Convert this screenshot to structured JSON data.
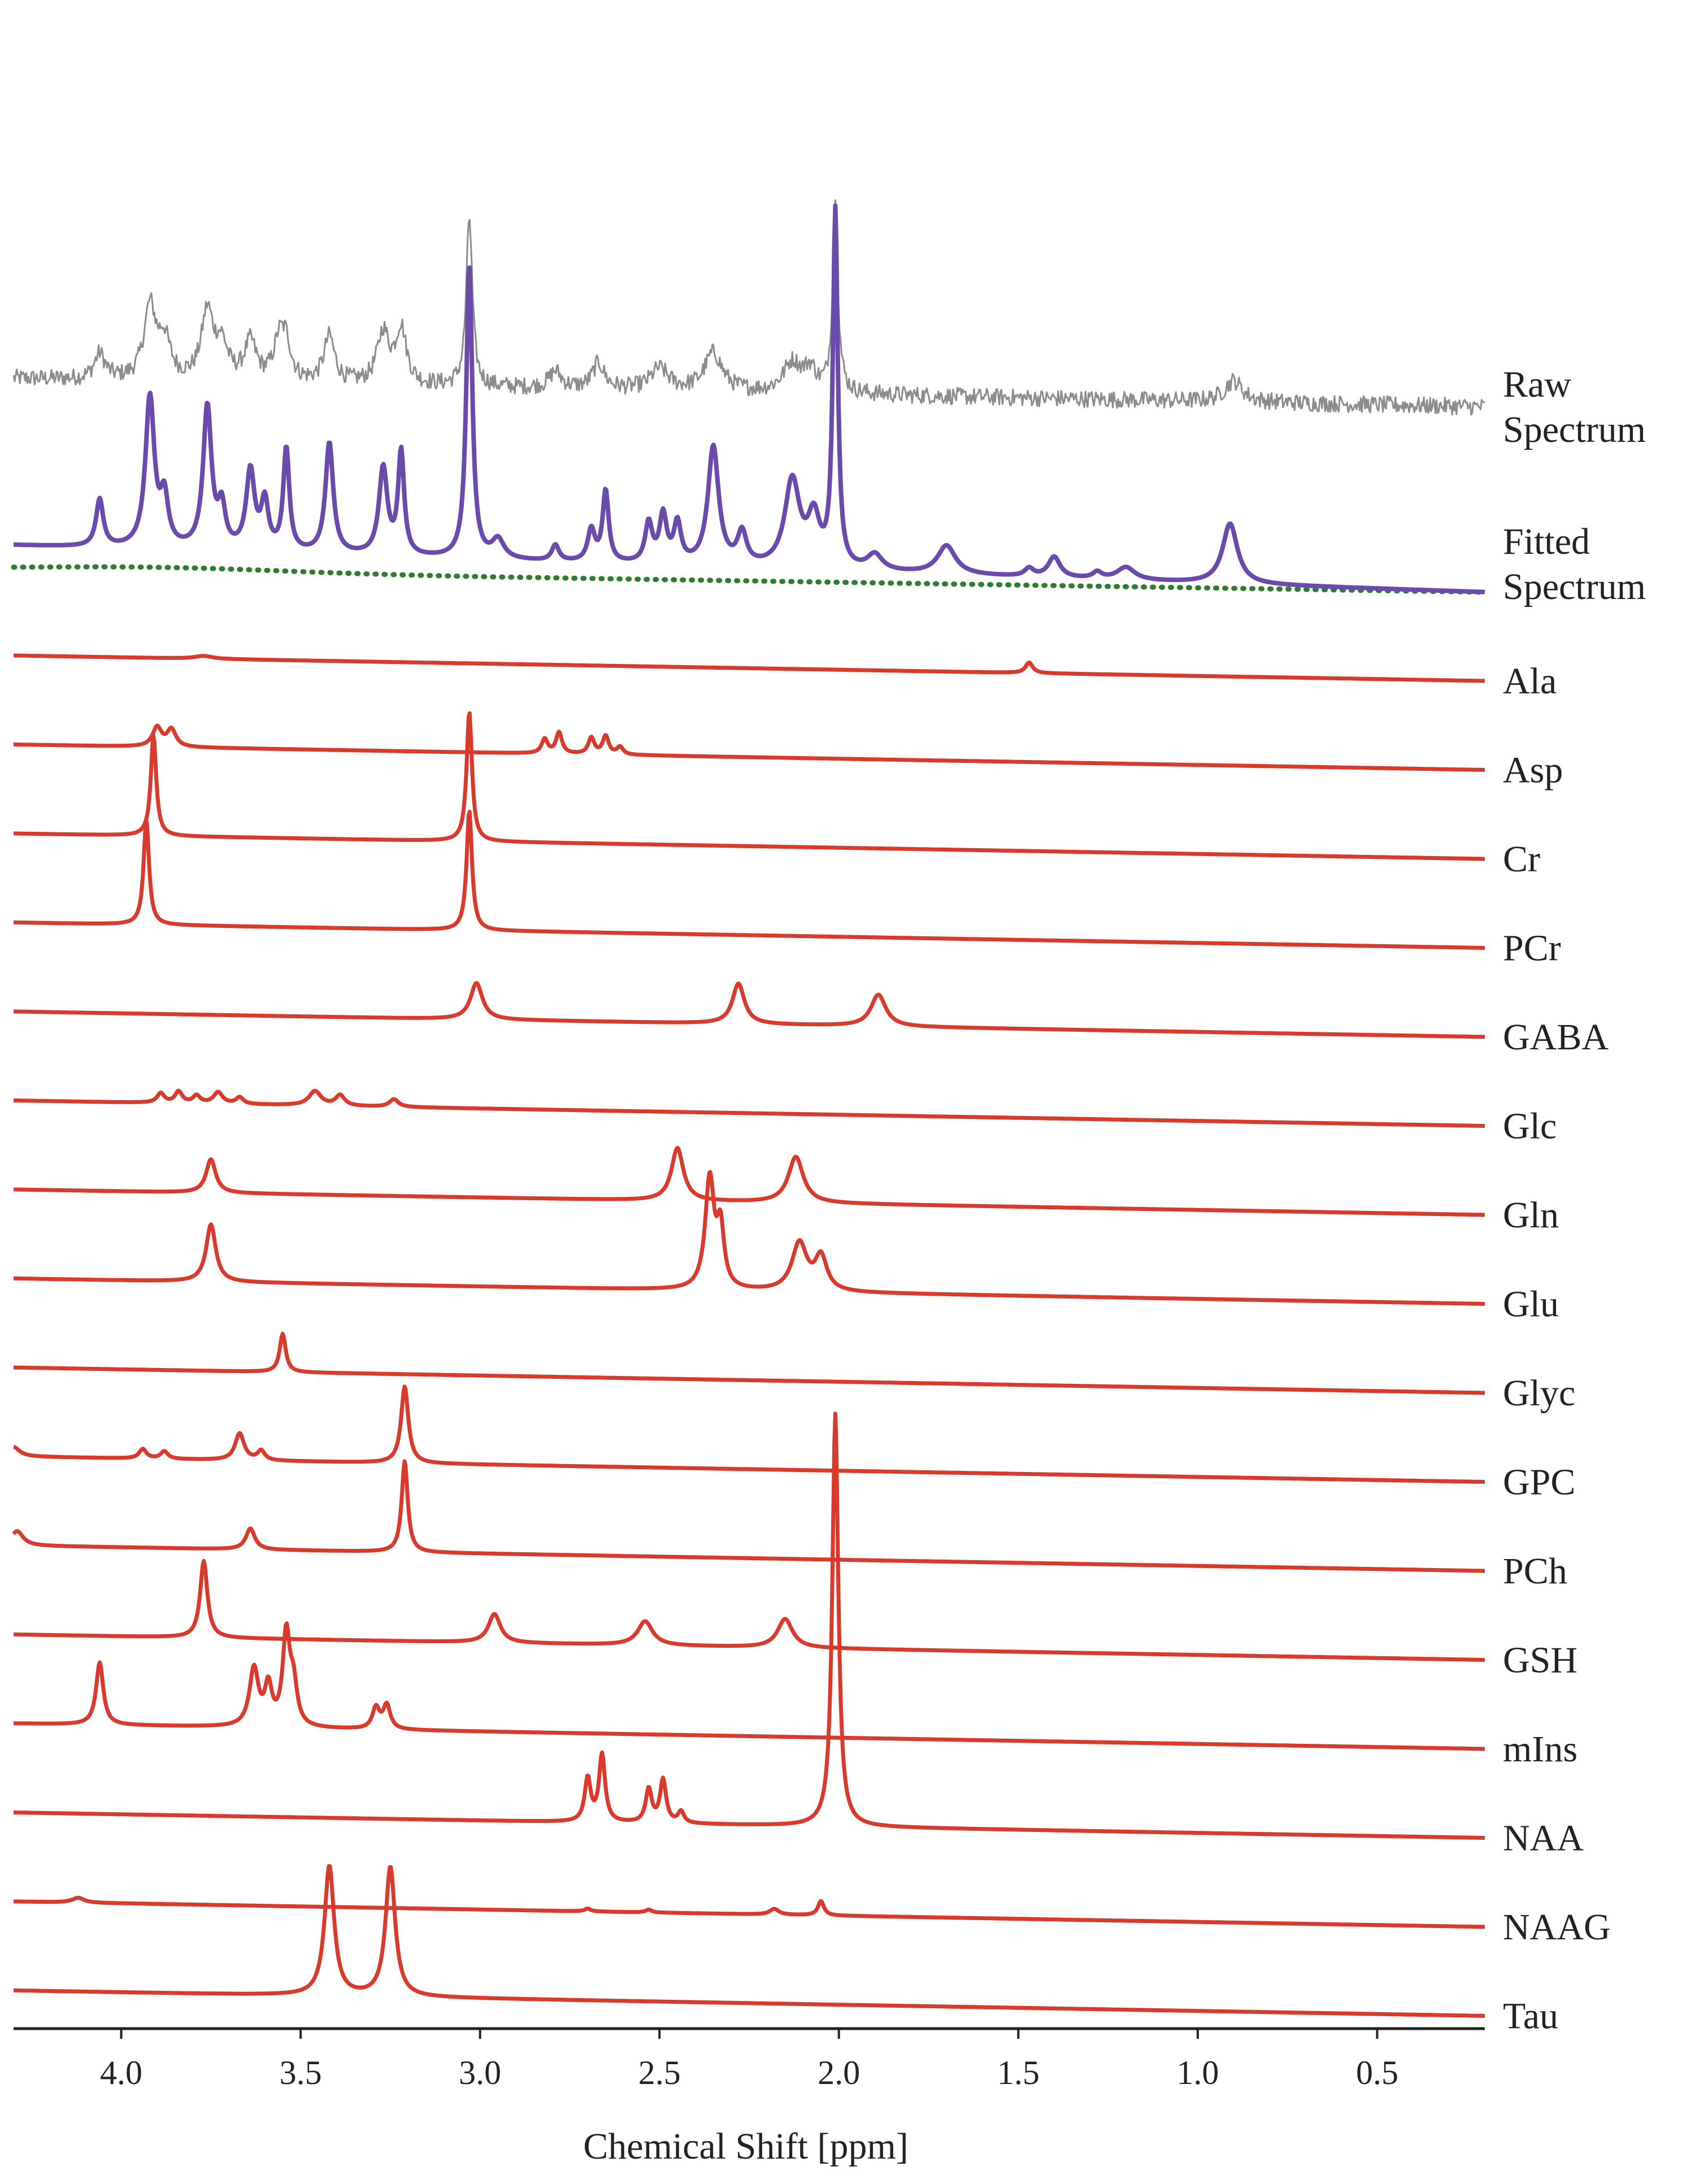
{
  "chart_data": {
    "type": "line",
    "xlabel": "Chemical Shift [ppm]",
    "xlim": [
      4.3,
      0.2
    ],
    "x_reversed": true,
    "xticks": [
      4.0,
      3.5,
      3.0,
      2.5,
      2.0,
      1.5,
      1.0,
      0.5
    ],
    "xtick_labels": [
      "4.0",
      "3.5",
      "3.0",
      "2.5",
      "2.0",
      "1.5",
      "1.0",
      "0.5"
    ],
    "grid": false,
    "legend": "none; each trace labeled at right end",
    "colors": {
      "raw": "#8c8c8c",
      "fitted": "#6a4bab",
      "baseline": "#2e7d2e",
      "component": "#d93a2b",
      "axis": "#222222"
    },
    "raw": {
      "name": "Raw Spectrum",
      "line1": "Raw",
      "line2": "Spectrum",
      "noise": 0.1,
      "peaks": [
        [
          4.06,
          0.3,
          0.018
        ],
        [
          3.92,
          0.85,
          0.02
        ],
        [
          3.88,
          0.45,
          0.02
        ],
        [
          3.76,
          0.8,
          0.02
        ],
        [
          3.72,
          0.4,
          0.02
        ],
        [
          3.64,
          0.45,
          0.02
        ],
        [
          3.56,
          0.45,
          0.018
        ],
        [
          3.54,
          0.4,
          0.016
        ],
        [
          3.42,
          0.55,
          0.018
        ],
        [
          3.27,
          0.6,
          0.02
        ],
        [
          3.22,
          0.65,
          0.018
        ],
        [
          3.03,
          2.0,
          0.01
        ],
        [
          2.79,
          0.2,
          0.02
        ],
        [
          2.67,
          0.3,
          0.02
        ],
        [
          2.5,
          0.25,
          0.03
        ],
        [
          2.35,
          0.45,
          0.03
        ],
        [
          2.13,
          0.35,
          0.03
        ],
        [
          2.08,
          0.25,
          0.02
        ],
        [
          2.01,
          2.2,
          0.009
        ],
        [
          0.9,
          0.25,
          0.03
        ]
      ]
    },
    "fitted": {
      "name": "Fitted Spectrum",
      "line1": "Fitted",
      "line2": "Spectrum",
      "peaks": [
        [
          4.06,
          0.3,
          0.012
        ],
        [
          3.92,
          0.95,
          0.015
        ],
        [
          3.88,
          0.3,
          0.013
        ],
        [
          3.76,
          0.9,
          0.014
        ],
        [
          3.72,
          0.25,
          0.012
        ],
        [
          3.64,
          0.5,
          0.014
        ],
        [
          3.6,
          0.3,
          0.012
        ],
        [
          3.54,
          0.65,
          0.01
        ],
        [
          3.42,
          0.7,
          0.013
        ],
        [
          3.27,
          0.55,
          0.014
        ],
        [
          3.22,
          0.65,
          0.01
        ],
        [
          3.03,
          1.85,
          0.01
        ],
        [
          2.95,
          0.12,
          0.02
        ],
        [
          2.79,
          0.1,
          0.012
        ],
        [
          2.69,
          0.2,
          0.012
        ],
        [
          2.65,
          0.45,
          0.01
        ],
        [
          2.53,
          0.25,
          0.012
        ],
        [
          2.49,
          0.3,
          0.012
        ],
        [
          2.45,
          0.25,
          0.012
        ],
        [
          2.35,
          0.75,
          0.018
        ],
        [
          2.27,
          0.2,
          0.015
        ],
        [
          2.13,
          0.55,
          0.025
        ],
        [
          2.07,
          0.3,
          0.02
        ],
        [
          2.01,
          2.25,
          0.008
        ],
        [
          1.9,
          0.1,
          0.025
        ],
        [
          1.7,
          0.18,
          0.03
        ],
        [
          1.47,
          0.05,
          0.015
        ],
        [
          1.4,
          0.13,
          0.02
        ],
        [
          1.28,
          0.04,
          0.015
        ],
        [
          1.2,
          0.08,
          0.03
        ],
        [
          0.91,
          0.38,
          0.025
        ]
      ]
    },
    "baseline": {
      "name": "baseline",
      "style": "dotted"
    },
    "series": [
      {
        "name": "Ala",
        "peaks": [
          [
            3.77,
            0.03,
            0.03
          ],
          [
            1.47,
            0.11,
            0.012
          ]
        ]
      },
      {
        "name": "Asp",
        "peaks": [
          [
            3.9,
            0.2,
            0.015
          ],
          [
            3.86,
            0.18,
            0.015
          ],
          [
            2.82,
            0.15,
            0.01
          ],
          [
            2.78,
            0.22,
            0.01
          ],
          [
            2.69,
            0.17,
            0.01
          ],
          [
            2.65,
            0.19,
            0.01
          ],
          [
            2.61,
            0.08,
            0.01
          ]
        ]
      },
      {
        "name": "Cr",
        "peaks": [
          [
            3.91,
            1.05,
            0.009
          ],
          [
            3.03,
            1.35,
            0.009
          ]
        ]
      },
      {
        "name": "PCr",
        "peaks": [
          [
            3.93,
            1.1,
            0.009
          ],
          [
            3.03,
            1.25,
            0.009
          ]
        ]
      },
      {
        "name": "GABA",
        "peaks": [
          [
            3.01,
            0.38,
            0.02
          ],
          [
            2.28,
            0.42,
            0.02
          ],
          [
            1.89,
            0.33,
            0.025
          ]
        ]
      },
      {
        "name": "Glc",
        "peaks": [
          [
            3.89,
            0.1,
            0.012
          ],
          [
            3.84,
            0.12,
            0.012
          ],
          [
            3.79,
            0.08,
            0.012
          ],
          [
            3.73,
            0.12,
            0.015
          ],
          [
            3.67,
            0.07,
            0.012
          ],
          [
            3.46,
            0.15,
            0.02
          ],
          [
            3.39,
            0.11,
            0.015
          ],
          [
            3.24,
            0.08,
            0.015
          ]
        ]
      },
      {
        "name": "Gln",
        "peaks": [
          [
            3.75,
            0.35,
            0.016
          ],
          [
            2.45,
            0.55,
            0.02
          ],
          [
            2.12,
            0.48,
            0.025
          ]
        ]
      },
      {
        "name": "Glu",
        "peaks": [
          [
            3.75,
            0.6,
            0.016
          ],
          [
            2.36,
            1.15,
            0.015
          ],
          [
            2.33,
            0.6,
            0.012
          ],
          [
            2.11,
            0.5,
            0.025
          ],
          [
            2.05,
            0.35,
            0.02
          ]
        ]
      },
      {
        "name": "Glyc",
        "peaks": [
          [
            3.55,
            0.4,
            0.01
          ]
        ]
      },
      {
        "name": "GPC",
        "peaks": [
          [
            4.3,
            0.1,
            0.02
          ],
          [
            3.94,
            0.1,
            0.012
          ],
          [
            3.88,
            0.08,
            0.012
          ],
          [
            3.67,
            0.28,
            0.015
          ],
          [
            3.61,
            0.1,
            0.012
          ],
          [
            3.21,
            0.8,
            0.012
          ]
        ]
      },
      {
        "name": "PCh",
        "peaks": [
          [
            4.29,
            0.15,
            0.02
          ],
          [
            3.64,
            0.22,
            0.015
          ],
          [
            3.21,
            0.95,
            0.01
          ]
        ]
      },
      {
        "name": "GSH",
        "peaks": [
          [
            3.77,
            0.8,
            0.012
          ],
          [
            2.96,
            0.3,
            0.02
          ],
          [
            2.54,
            0.25,
            0.025
          ],
          [
            2.15,
            0.3,
            0.025
          ]
        ]
      },
      {
        "name": "mIns",
        "peaks": [
          [
            4.06,
            0.65,
            0.012
          ],
          [
            3.63,
            0.6,
            0.015
          ],
          [
            3.59,
            0.4,
            0.012
          ],
          [
            3.54,
            0.95,
            0.012
          ],
          [
            3.52,
            0.4,
            0.012
          ],
          [
            3.29,
            0.22,
            0.012
          ],
          [
            3.26,
            0.25,
            0.012
          ]
        ]
      },
      {
        "name": "NAA",
        "peaks": [
          [
            2.7,
            0.45,
            0.01
          ],
          [
            2.66,
            0.7,
            0.01
          ],
          [
            2.53,
            0.35,
            0.01
          ],
          [
            2.49,
            0.45,
            0.01
          ],
          [
            2.44,
            0.12,
            0.01
          ],
          [
            2.01,
            4.3,
            0.01
          ]
        ]
      },
      {
        "name": "NAAG",
        "peaks": [
          [
            4.12,
            0.05,
            0.02
          ],
          [
            2.7,
            0.03,
            0.01
          ],
          [
            2.53,
            0.03,
            0.01
          ],
          [
            2.18,
            0.06,
            0.015
          ],
          [
            2.05,
            0.15,
            0.01
          ]
        ]
      },
      {
        "name": "Tau",
        "peaks": [
          [
            3.42,
            1.35,
            0.016
          ],
          [
            3.25,
            1.35,
            0.016
          ]
        ]
      }
    ]
  }
}
